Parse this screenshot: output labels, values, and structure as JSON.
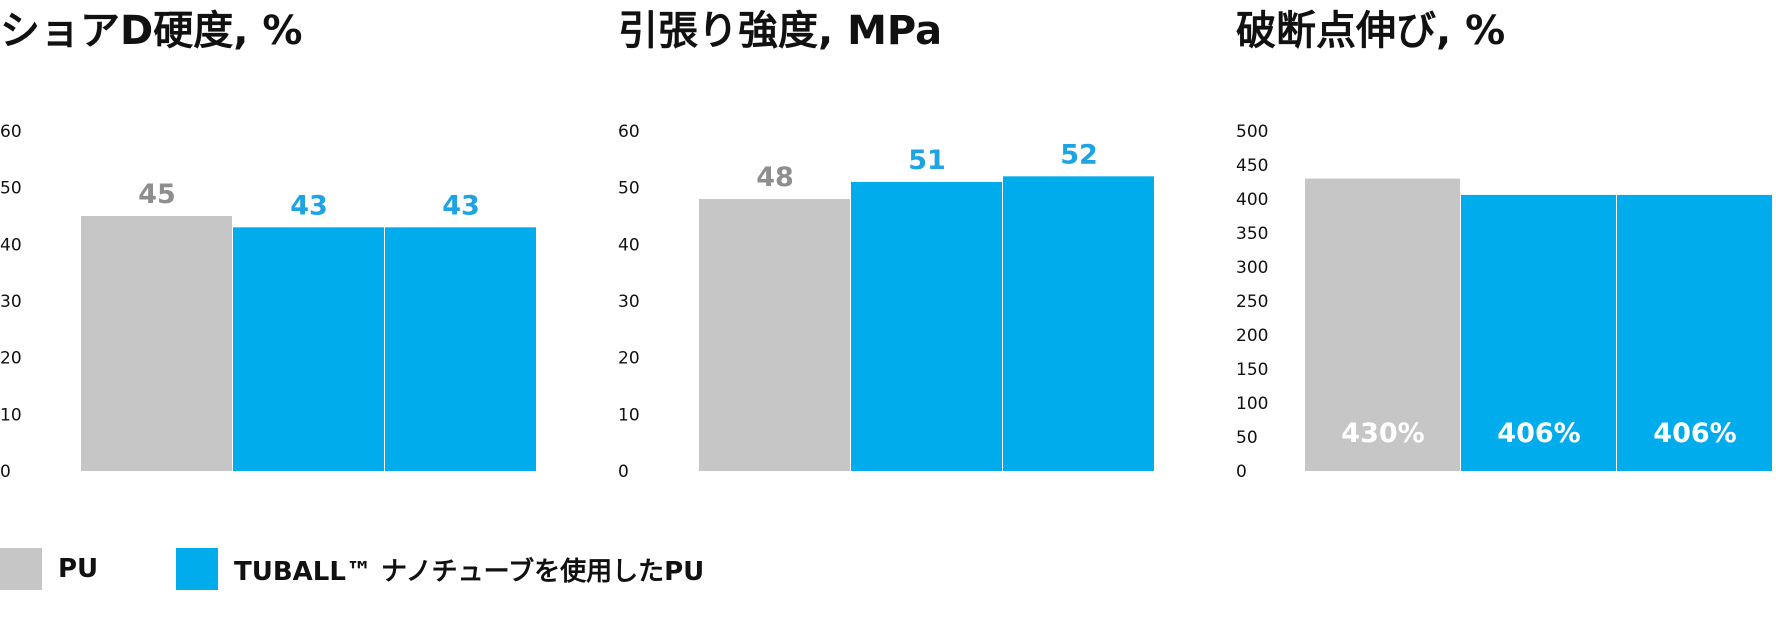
{
  "colors": {
    "pu": "#c6c6c6",
    "tuball": "#00aceb",
    "pu_label": "#8e8e8e",
    "tuball_label": "#1da4e3",
    "inside_label": "#ffffff",
    "text": "#111111"
  },
  "legend": {
    "pu_label": "PU",
    "tuball_label": "TUBALL™ ナノチューブを使用したPU"
  },
  "chart_data": [
    {
      "type": "bar",
      "title": "ショアD硬度, %",
      "ylim": [
        0,
        60
      ],
      "yticks": [
        "0",
        "10",
        "20",
        "30",
        "40",
        "50",
        "60"
      ],
      "values": [
        45,
        43,
        43
      ],
      "series_colors": [
        "pu",
        "tuball",
        "tuball"
      ],
      "data_labels": [
        "45",
        "43",
        "43"
      ],
      "label_position": "above"
    },
    {
      "type": "bar",
      "title": "引張り強度, MPa",
      "ylim": [
        0,
        60
      ],
      "yticks": [
        "0",
        "10",
        "20",
        "30",
        "40",
        "50",
        "60"
      ],
      "values": [
        48,
        51,
        52
      ],
      "series_colors": [
        "pu",
        "tuball",
        "tuball"
      ],
      "data_labels": [
        "48",
        "51",
        "52"
      ],
      "label_position": "above"
    },
    {
      "type": "bar",
      "title": "破断点伸び, %",
      "ylim": [
        0,
        500
      ],
      "yticks": [
        "0",
        "50",
        "100",
        "150",
        "200",
        "250",
        "300",
        "350",
        "400",
        "450",
        "500"
      ],
      "values": [
        430,
        406,
        406
      ],
      "series_colors": [
        "pu",
        "tuball",
        "tuball"
      ],
      "data_labels": [
        "430%",
        "406%",
        "406%"
      ],
      "label_position": "inside-bottom"
    }
  ]
}
